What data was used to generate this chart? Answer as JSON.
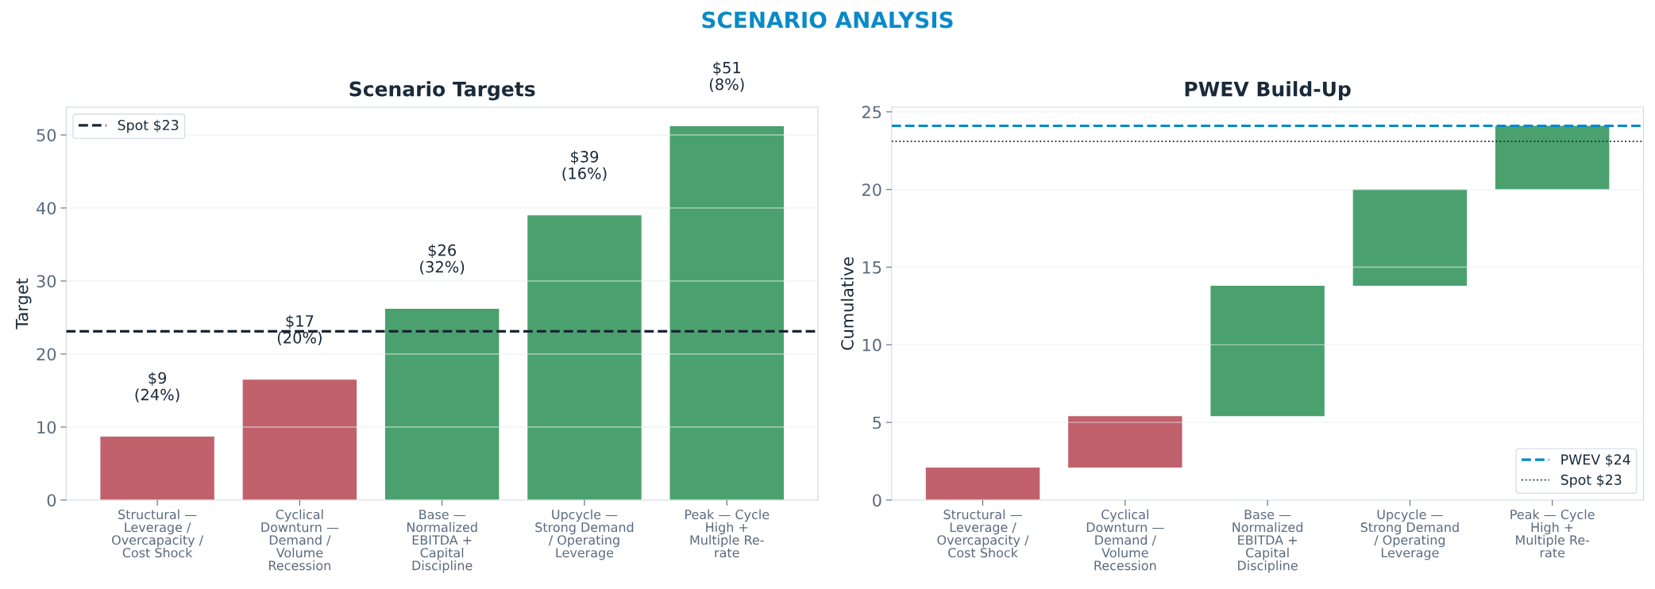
{
  "chart_data": [
    {
      "type": "bar",
      "title": "Scenario Targets",
      "ylabel": "Target",
      "annotations": [
        "SCENARIO ANALYSIS"
      ],
      "categories": [
        "Structural —\nLeverage /\nOvercapacity /\nCost Shock",
        "Cyclical\nDownturn —\nDemand /\nVolume\nRecession",
        "Base —\nNormalized\nEBITDA +\nCapital\nDiscipline",
        "Upcycle —\nStrong Demand\n/ Operating\nLeverage",
        "Peak — Cycle\nHigh +\nMultiple Re-\nrate"
      ],
      "values": [
        8.7,
        16.5,
        26.2,
        39.0,
        51.2
      ],
      "colors": [
        "#c1616b",
        "#c1616b",
        "#4aa16e",
        "#4aa16e",
        "#4aa16e"
      ],
      "value_labels": [
        "$9\n(24%)",
        "$17\n(20%)",
        "$26\n(32%)",
        "$39\n(16%)",
        "$51\n(8%)"
      ],
      "ylim": [
        0,
        53.8
      ],
      "yticks": [
        0,
        10,
        20,
        30,
        40,
        50
      ],
      "grid": "y",
      "ref_lines": [
        {
          "axis": "y",
          "value": 23.1,
          "label": "Spot $23",
          "color": "#1a2535",
          "line_style": "dashed"
        }
      ],
      "legend": "top left"
    },
    {
      "type": "bar",
      "title": "PWEV Build-Up",
      "ylabel": "Cumulative",
      "categories": [
        "Structural —\nLeverage /\nOvercapacity /\nCost Shock",
        "Cyclical\nDownturn —\nDemand /\nVolume\nRecession",
        "Base —\nNormalized\nEBITDA +\nCapital\nDiscipline",
        "Upcycle —\nStrong Demand\n/ Operating\nLeverage",
        "Peak — Cycle\nHigh +\nMultiple Re-\nrate"
      ],
      "values": [
        2.1,
        3.3,
        8.4,
        6.2,
        4.1
      ],
      "base": [
        0,
        2.1,
        5.4,
        13.8,
        20.0
      ],
      "colors": [
        "#c1616b",
        "#c1616b",
        "#4aa16e",
        "#4aa16e",
        "#4aa16e"
      ],
      "ylim": [
        0,
        25.3
      ],
      "yticks": [
        0,
        5,
        10,
        15,
        20,
        25
      ],
      "grid": "y",
      "ref_lines": [
        {
          "axis": "y",
          "value": 24.1,
          "label": "PWEV $24",
          "color": "#0088cc",
          "line_style": "dashed"
        },
        {
          "axis": "y",
          "value": 23.1,
          "label": "Spot $23",
          "color": "#1a2535",
          "line_style": "dotted"
        }
      ],
      "legend": "bottom right"
    }
  ]
}
